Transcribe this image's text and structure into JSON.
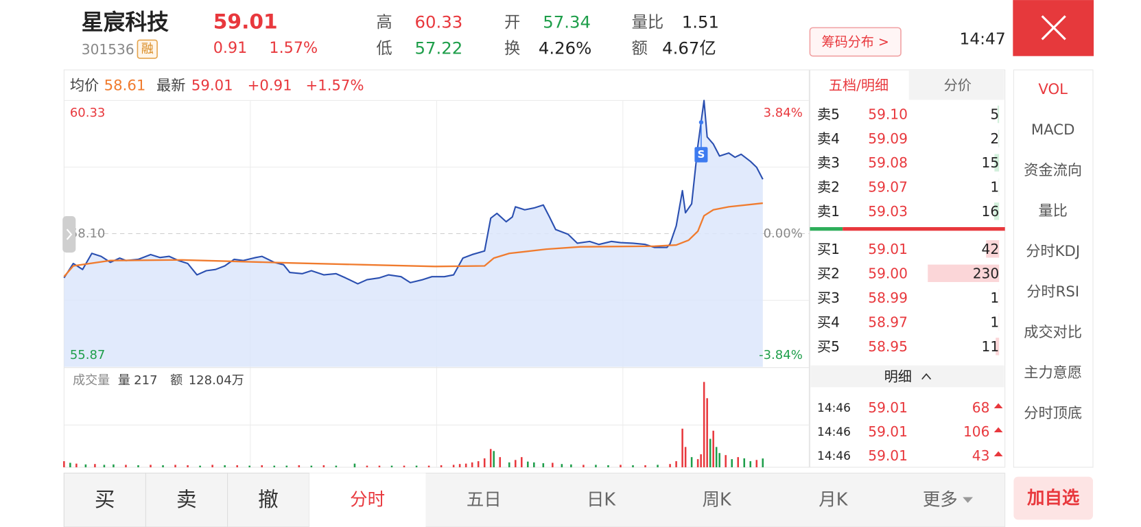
{
  "header": {
    "name": "星宸科技",
    "code": "301536",
    "tag": "融",
    "price": "59.01",
    "change": "0.91",
    "change_pct": "1.57%",
    "stats": [
      {
        "label": "高",
        "value": "60.33",
        "color": "#e8383d"
      },
      {
        "label": "低",
        "value": "57.22",
        "color": "#1e9e4a"
      },
      {
        "label": "开",
        "value": "57.34",
        "color": "#1e9e4a"
      },
      {
        "label": "换",
        "value": "4.26%",
        "color": "#222222"
      },
      {
        "label": "量比",
        "value": "1.51",
        "color": "#222222"
      },
      {
        "label": "额",
        "value": "4.67亿",
        "color": "#222222"
      }
    ],
    "chip_button": "筹码分布 >",
    "time": "14:47"
  },
  "chart_data": [
    {
      "type": "line",
      "change": "+0.91",
      "change_pct": "+1.57%",
      "marker_label": "S",
      "xlim": [
        0,
        241
      ],
      "ylim": [
        55.87,
        60.33
      ],
      "yticks": [
        55.87,
        {
          "value": 58.1,
          "label": "58.10"
        },
        60.33
      ],
      "y2lim": [
        -3.84,
        3.84
      ],
      "y2ticks": [
        {
          "value": -3.84,
          "label": "-3.84%"
        },
        {
          "value": 0,
          "label": "0.00%"
        },
        {
          "value": 3.84,
          "label": "3.84%"
        }
      ],
      "grid": true,
      "series": [
        {
          "name": "最新",
          "color": "#2a4fb0",
          "x": [
            0,
            3,
            6,
            9,
            12,
            15,
            18,
            20,
            24,
            28,
            31,
            34,
            37,
            40,
            43,
            46,
            49,
            52,
            55,
            58,
            62,
            64,
            68,
            71,
            73,
            77,
            80,
            84,
            88,
            91,
            95,
            98,
            102,
            105,
            109,
            112,
            116,
            119,
            123,
            126,
            129,
            132,
            136,
            138,
            140,
            143,
            145,
            146,
            149,
            152,
            155,
            157,
            159,
            163,
            166,
            170,
            173,
            177,
            180,
            184,
            188,
            191,
            195,
            196,
            198,
            200,
            201,
            203,
            205,
            207,
            208,
            210,
            212,
            215,
            217,
            219,
            222,
            224,
            226
          ],
          "values": [
            57.36,
            57.6,
            57.5,
            57.77,
            57.72,
            57.62,
            57.69,
            57.65,
            57.67,
            57.75,
            57.7,
            57.72,
            57.65,
            57.6,
            57.41,
            57.48,
            57.5,
            57.56,
            57.67,
            57.65,
            57.7,
            57.72,
            57.62,
            57.58,
            57.45,
            57.43,
            57.48,
            57.41,
            57.43,
            57.36,
            57.26,
            57.33,
            57.36,
            57.41,
            57.38,
            57.28,
            57.33,
            57.38,
            57.38,
            57.41,
            57.69,
            57.75,
            57.81,
            58.36,
            58.44,
            58.3,
            58.38,
            58.55,
            58.5,
            58.53,
            58.58,
            58.38,
            58.17,
            58.09,
            57.94,
            57.97,
            57.92,
            57.97,
            57.95,
            57.94,
            57.92,
            57.87,
            57.87,
            57.93,
            58.23,
            58.82,
            58.45,
            58.6,
            59.57,
            60.33,
            59.72,
            59.6,
            59.4,
            59.45,
            59.38,
            59.43,
            59.31,
            59.21,
            59.01
          ]
        },
        {
          "name": "均价",
          "color": "#f07b2e",
          "x": [
            0,
            3,
            15,
            38,
            73,
            97,
            120,
            136,
            139,
            144,
            156,
            167,
            191,
            198,
            202,
            205,
            207,
            210,
            215,
            226
          ],
          "values": [
            57.38,
            57.56,
            57.65,
            57.66,
            57.61,
            57.58,
            57.55,
            57.56,
            57.69,
            57.77,
            57.84,
            57.88,
            57.89,
            57.91,
            57.99,
            58.14,
            58.4,
            58.5,
            58.55,
            58.61
          ]
        }
      ]
    },
    {
      "type": "bar",
      "title": "成交量",
      "volume_label": "量",
      "amount_label": "额",
      "amount": "128.04万",
      "xlim": [
        0,
        241
      ],
      "ylim": [
        0,
        2400
      ],
      "x": [
        0,
        2,
        4,
        7,
        10,
        13,
        16,
        20,
        24,
        28,
        32,
        36,
        40,
        44,
        48,
        52,
        56,
        60,
        64,
        68,
        72,
        76,
        80,
        84,
        88,
        94,
        98,
        102,
        106,
        110,
        114,
        118,
        122,
        126,
        128,
        130,
        132,
        134,
        136,
        138,
        139,
        141,
        144,
        146,
        148,
        150,
        152,
        155,
        158,
        161,
        164,
        168,
        172,
        176,
        180,
        184,
        188,
        192,
        196,
        198,
        200,
        201,
        203,
        205,
        206,
        207,
        208,
        209,
        210,
        211,
        212,
        214,
        216,
        218,
        220,
        222,
        224,
        226
      ],
      "values": [
        150,
        110,
        90,
        70,
        80,
        60,
        70,
        60,
        50,
        60,
        50,
        60,
        50,
        40,
        60,
        50,
        50,
        40,
        50,
        40,
        40,
        50,
        40,
        50,
        40,
        90,
        40,
        40,
        40,
        40,
        40,
        40,
        50,
        60,
        80,
        90,
        120,
        150,
        220,
        450,
        400,
        250,
        120,
        180,
        250,
        140,
        120,
        100,
        110,
        80,
        70,
        60,
        60,
        50,
        60,
        50,
        50,
        60,
        80,
        150,
        950,
        500,
        250,
        200,
        320,
        2100,
        1700,
        700,
        900,
        500,
        350,
        300,
        200,
        250,
        220,
        150,
        180,
        217
      ],
      "colors": [
        "#e8383d",
        "#1e9e4a",
        "#e8383d",
        "#1e9e4a",
        "#e8383d",
        "#1e9e4a",
        "#1e9e4a",
        "#e8383d",
        "#1e9e4a",
        "#e8383d",
        "#1e9e4a",
        "#e8383d",
        "#e8383d",
        "#1e9e4a",
        "#e8383d",
        "#1e9e4a",
        "#e8383d",
        "#1e9e4a",
        "#e8383d",
        "#1e9e4a",
        "#1e9e4a",
        "#e8383d",
        "#1e9e4a",
        "#e8383d",
        "#1e9e4a",
        "#1e9e4a",
        "#e8383d",
        "#e8383d",
        "#1e9e4a",
        "#e8383d",
        "#1e9e4a",
        "#e8383d",
        "#e8383d",
        "#e8383d",
        "#e8383d",
        "#e8383d",
        "#e8383d",
        "#e8383d",
        "#e8383d",
        "#e8383d",
        "#1e9e4a",
        "#e8383d",
        "#1e9e4a",
        "#e8383d",
        "#e8383d",
        "#1e9e4a",
        "#1e9e4a",
        "#1e9e4a",
        "#e8383d",
        "#1e9e4a",
        "#1e9e4a",
        "#e8383d",
        "#1e9e4a",
        "#1e9e4a",
        "#e8383d",
        "#1e9e4a",
        "#e8383d",
        "#1e9e4a",
        "#e8383d",
        "#e8383d",
        "#e8383d",
        "#e8383d",
        "#1e9e4a",
        "#e8383d",
        "#e8383d",
        "#e8383d",
        "#e8383d",
        "#1e9e4a",
        "#e8383d",
        "#1e9e4a",
        "#1e9e4a",
        "#e8383d",
        "#1e9e4a",
        "#e8383d",
        "#1e9e4a",
        "#1e9e4a",
        "#e8383d",
        "#1e9e4a"
      ]
    }
  ],
  "order_book": {
    "tabs": [
      "五档/明细",
      "分价"
    ],
    "asks": [
      {
        "label": "卖5",
        "price": "59.10",
        "volume": 5
      },
      {
        "label": "卖4",
        "price": "59.09",
        "volume": 2
      },
      {
        "label": "卖3",
        "price": "59.08",
        "volume": 15
      },
      {
        "label": "卖2",
        "price": "59.07",
        "volume": 1
      },
      {
        "label": "卖1",
        "price": "59.03",
        "volume": 16
      }
    ],
    "bids": [
      {
        "label": "买1",
        "price": "59.01",
        "volume": 42
      },
      {
        "label": "买2",
        "price": "59.00",
        "volume": 230
      },
      {
        "label": "买3",
        "price": "58.99",
        "volume": 1
      },
      {
        "label": "买4",
        "price": "58.97",
        "volume": 1
      },
      {
        "label": "买5",
        "price": "58.95",
        "volume": 11
      }
    ]
  },
  "trade_details": {
    "title": "明细",
    "rows": [
      {
        "time": "14:46",
        "price": "59.01",
        "volume": "68"
      },
      {
        "time": "14:46",
        "price": "59.01",
        "volume": "106"
      },
      {
        "time": "14:46",
        "price": "59.01",
        "volume": "43"
      }
    ]
  },
  "side_menu": {
    "items": [
      "VOL",
      "MACD",
      "资金流向",
      "量比",
      "分时KDJ",
      "分时RSI",
      "成交对比",
      "主力意愿",
      "分时顶底"
    ],
    "active": 0
  },
  "bottom_bar": {
    "trade_buttons": [
      "买",
      "卖",
      "撤"
    ],
    "period_tabs": [
      "分时",
      "五日",
      "日K",
      "周K",
      "月K",
      "更多"
    ],
    "active": 0,
    "add_button": "加自选"
  }
}
